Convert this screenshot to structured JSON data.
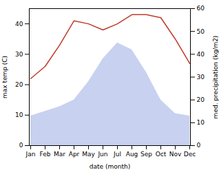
{
  "chart_data": {
    "type": "line",
    "categories": [
      "Jan",
      "Feb",
      "Mar",
      "Apr",
      "May",
      "Jun",
      "Jul",
      "Aug",
      "Sep",
      "Oct",
      "Nov",
      "Dec"
    ],
    "series": [
      {
        "type": "area",
        "axis": "y2",
        "color": "#b0bee8",
        "values": [
          13,
          15,
          17,
          20,
          28,
          38,
          45,
          42,
          32,
          20,
          14,
          13
        ]
      },
      {
        "type": "line",
        "color": "#c0392b",
        "values": [
          22,
          26,
          33,
          41,
          40,
          38,
          40,
          43,
          43,
          42,
          35,
          27
        ]
      }
    ],
    "xlabel": "date (month)",
    "ylabel": "max temp (C)",
    "y2label": "med. precipitation (kg/m2)",
    "ylim": [
      0,
      45
    ],
    "yticks": [
      0,
      10,
      20,
      30,
      40
    ],
    "y2lim": [
      0,
      60
    ],
    "y2ticks": [
      0,
      10,
      20,
      30,
      40,
      50,
      60
    ],
    "grid": false
  }
}
